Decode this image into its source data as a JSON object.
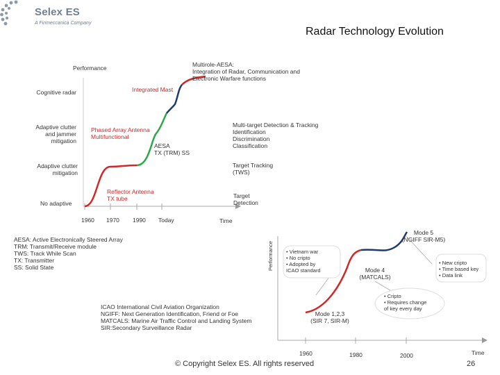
{
  "logo": {
    "name": "Selex ES",
    "tagline": "A Finmeccanica Company"
  },
  "title": "Radar Technology Evolution",
  "colors": {
    "red": "#d32727",
    "blue": "#1f3a6e",
    "green": "#2aa84a",
    "gray": "#999999"
  },
  "top_diagram": {
    "y_axis_label": "Performance",
    "x_axis_label": "Time",
    "x_ticks": [
      "1960",
      "1970",
      "1990",
      "Today"
    ],
    "left_labels": {
      "cognitive": "Cognitive radar",
      "adaptive_jammer": "Adaptive clutter and jammer mitigation",
      "adaptive_clutter": "Adaptive clutter mitigation",
      "no_adaptive": "No adaptive"
    },
    "red_labels": {
      "integrated_mast": "Integrated Mast",
      "phased_array": "Phased Array Antenna\nMultifunctional",
      "reflector": "Reflector Antenna\nTX tube"
    },
    "aesa": "AESA\nTX (TRM) SS",
    "multirole": "Multirole-AESA:\nIntegration of Radar, Communication and\nElectronic Warfare functions",
    "right_labels": {
      "multi_target": "Multi-target Detection & Tracking\nIdentification\nDiscrimination\nClassification",
      "tws": "Target Tracking\n(TWS)",
      "detection": "Target\nDetection"
    }
  },
  "glossary_1": "AESA: Active Electronically Steered Array\nTRM: Transmit/Receive module\nTWS: Track While Scan\nTX: Transmitter\nSS: Solid State",
  "glossary_2": "ICAO International Civil Aviation Organization\nNGIFF: Next Generation Identification, Friend or Foe\nMATCALS: Marine Air Traffic Control and Landing System\nSIR:Secondary Surveillance Radar",
  "bottom_diagram": {
    "y_axis_label": "Performance",
    "x_axis_label": "Time",
    "x_ticks": [
      "1960",
      "1980",
      "2000"
    ],
    "modes": {
      "mode5": "Mode 5\n(NGIFF SIR-M5)",
      "mode4": "Mode 4\n(MATCALS)",
      "mode123": "Mode 1,2,3\n(SIR 7, SIR-M)"
    },
    "callouts": {
      "vietnam": "• Vietnam war\n• No cripto\n• Adopted by\n  ICAO standard",
      "cripto": "• Cripto\n• Requires change\n  of key every day",
      "new_cripto": "• New cripto\n• Time based key\n• Data link"
    }
  },
  "footer": "© Copyright Selex ES. All rights reserved",
  "page_number": "26"
}
